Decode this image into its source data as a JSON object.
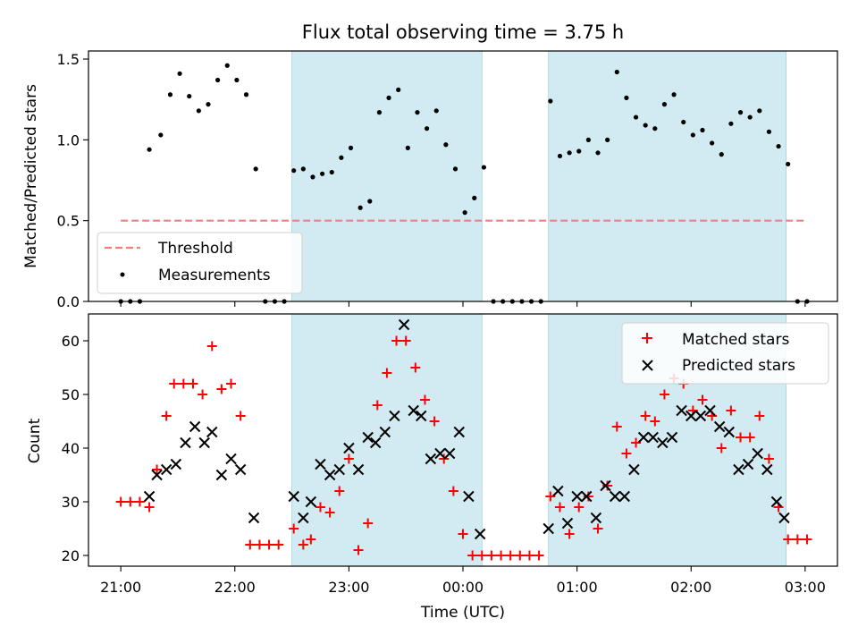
{
  "chart_data": [
    {
      "type": "scatter",
      "title": "Flux total observing time = 3.75 h",
      "xlabel": "",
      "ylabel": "Matched/Predicted stars",
      "xlim": [
        "20:43",
        "03:17"
      ],
      "ylim": [
        0,
        1.55
      ],
      "yticks": [
        "0.0",
        "0.5",
        "1.0",
        "1.5"
      ],
      "xtick_values": [
        "21:00",
        "22:00",
        "23:00",
        "00:00",
        "01:00",
        "02:00",
        "03:00"
      ],
      "shaded_regions": [
        [
          "22:30",
          "00:10"
        ],
        [
          "00:45",
          "02:50"
        ]
      ],
      "shade_color": "#add8e6",
      "legend": {
        "position": "lower-left",
        "entries": [
          "Threshold",
          "Measurements"
        ]
      },
      "threshold": {
        "name": "Threshold",
        "value": 0.5,
        "x_range": [
          "21:00",
          "03:00"
        ],
        "color": "#f08080",
        "style": "dashed"
      },
      "series": [
        {
          "name": "Measurements",
          "marker": "dot",
          "color": "#000000",
          "points": [
            [
              "21:00",
              0.0
            ],
            [
              "21:05",
              0.0
            ],
            [
              "21:10",
              0.0
            ],
            [
              "21:15",
              0.94
            ],
            [
              "21:21",
              1.03
            ],
            [
              "21:26",
              1.28
            ],
            [
              "21:31",
              1.41
            ],
            [
              "21:36",
              1.27
            ],
            [
              "21:41",
              1.18
            ],
            [
              "21:46",
              1.22
            ],
            [
              "21:51",
              1.37
            ],
            [
              "21:56",
              1.46
            ],
            [
              "22:01",
              1.37
            ],
            [
              "22:06",
              1.28
            ],
            [
              "22:11",
              0.82
            ],
            [
              "22:16",
              0.0
            ],
            [
              "22:21",
              0.0
            ],
            [
              "22:26",
              0.0
            ],
            [
              "22:31",
              0.81
            ],
            [
              "22:36",
              0.82
            ],
            [
              "22:41",
              0.77
            ],
            [
              "22:46",
              0.79
            ],
            [
              "22:51",
              0.8
            ],
            [
              "22:56",
              0.89
            ],
            [
              "23:01",
              0.95
            ],
            [
              "23:06",
              0.58
            ],
            [
              "23:11",
              0.62
            ],
            [
              "23:16",
              1.17
            ],
            [
              "23:21",
              1.26
            ],
            [
              "23:26",
              1.31
            ],
            [
              "23:31",
              0.95
            ],
            [
              "23:36",
              1.17
            ],
            [
              "23:41",
              1.07
            ],
            [
              "23:46",
              1.18
            ],
            [
              "23:51",
              0.97
            ],
            [
              "23:56",
              0.82
            ],
            [
              "00:01",
              0.55
            ],
            [
              "00:06",
              0.64
            ],
            [
              "00:11",
              0.83
            ],
            [
              "00:16",
              0.0
            ],
            [
              "00:21",
              0.0
            ],
            [
              "00:26",
              0.0
            ],
            [
              "00:31",
              0.0
            ],
            [
              "00:36",
              0.0
            ],
            [
              "00:41",
              0.0
            ],
            [
              "00:46",
              1.24
            ],
            [
              "00:51",
              0.9
            ],
            [
              "00:56",
              0.92
            ],
            [
              "01:01",
              0.93
            ],
            [
              "01:06",
              1.0
            ],
            [
              "01:11",
              0.92
            ],
            [
              "01:16",
              1.0
            ],
            [
              "01:21",
              1.42
            ],
            [
              "01:26",
              1.26
            ],
            [
              "01:31",
              1.14
            ],
            [
              "01:36",
              1.09
            ],
            [
              "01:41",
              1.07
            ],
            [
              "01:46",
              1.22
            ],
            [
              "01:51",
              1.28
            ],
            [
              "01:56",
              1.11
            ],
            [
              "02:01",
              1.03
            ],
            [
              "02:06",
              1.06
            ],
            [
              "02:11",
              0.98
            ],
            [
              "02:16",
              0.91
            ],
            [
              "02:21",
              1.1
            ],
            [
              "02:26",
              1.17
            ],
            [
              "02:31",
              1.14
            ],
            [
              "02:36",
              1.18
            ],
            [
              "02:41",
              1.05
            ],
            [
              "02:46",
              0.96
            ],
            [
              "02:51",
              0.85
            ],
            [
              "02:56",
              0.0
            ],
            [
              "03:01",
              0.0
            ]
          ]
        }
      ]
    },
    {
      "type": "scatter",
      "title": "",
      "xlabel": "Time (UTC)",
      "ylabel": "Count",
      "xlim": [
        "20:43",
        "03:17"
      ],
      "ylim": [
        18,
        65
      ],
      "yticks": [
        "20",
        "30",
        "40",
        "50",
        "60"
      ],
      "xticks": [
        "21:00",
        "22:00",
        "23:00",
        "00:00",
        "01:00",
        "02:00",
        "03:00"
      ],
      "shaded_regions": [
        [
          "22:30",
          "00:10"
        ],
        [
          "00:45",
          "02:50"
        ]
      ],
      "shade_color": "#add8e6",
      "legend": {
        "position": "top-right",
        "entries": [
          "Matched stars",
          "Predicted stars"
        ]
      },
      "series": [
        {
          "name": "Matched stars",
          "marker": "plus",
          "color": "#ff0000",
          "points": [
            [
              "21:00",
              30
            ],
            [
              "21:05",
              30
            ],
            [
              "21:10",
              30
            ],
            [
              "21:15",
              29
            ],
            [
              "21:19",
              36
            ],
            [
              "21:24",
              46
            ],
            [
              "21:28",
              52
            ],
            [
              "21:33",
              52
            ],
            [
              "21:38",
              52
            ],
            [
              "21:43",
              50
            ],
            [
              "21:48",
              59
            ],
            [
              "21:53",
              51
            ],
            [
              "21:58",
              52
            ],
            [
              "22:03",
              46
            ],
            [
              "22:08",
              22
            ],
            [
              "22:13",
              22
            ],
            [
              "22:18",
              22
            ],
            [
              "22:23",
              22
            ],
            [
              "22:31",
              25
            ],
            [
              "22:36",
              22
            ],
            [
              "22:40",
              23
            ],
            [
              "22:45",
              29
            ],
            [
              "22:50",
              28
            ],
            [
              "22:55",
              32
            ],
            [
              "23:00",
              38
            ],
            [
              "23:05",
              21
            ],
            [
              "23:10",
              26
            ],
            [
              "23:15",
              48
            ],
            [
              "23:20",
              54
            ],
            [
              "23:25",
              60
            ],
            [
              "23:30",
              60
            ],
            [
              "23:35",
              55
            ],
            [
              "23:40",
              49
            ],
            [
              "23:45",
              45
            ],
            [
              "23:50",
              38
            ],
            [
              "23:55",
              32
            ],
            [
              "00:00",
              24
            ],
            [
              "00:05",
              20
            ],
            [
              "00:10",
              20
            ],
            [
              "00:15",
              20
            ],
            [
              "00:20",
              20
            ],
            [
              "00:25",
              20
            ],
            [
              "00:30",
              20
            ],
            [
              "00:35",
              20
            ],
            [
              "00:40",
              20
            ],
            [
              "00:46",
              31
            ],
            [
              "00:51",
              29
            ],
            [
              "00:56",
              24
            ],
            [
              "01:01",
              29
            ],
            [
              "01:06",
              31
            ],
            [
              "01:11",
              25
            ],
            [
              "01:16",
              33
            ],
            [
              "01:21",
              44
            ],
            [
              "01:26",
              39
            ],
            [
              "01:31",
              41
            ],
            [
              "01:36",
              46
            ],
            [
              "01:41",
              45
            ],
            [
              "01:46",
              50
            ],
            [
              "01:51",
              53
            ],
            [
              "01:56",
              52
            ],
            [
              "02:01",
              47
            ],
            [
              "02:06",
              49
            ],
            [
              "02:11",
              46
            ],
            [
              "02:16",
              40
            ],
            [
              "02:21",
              47
            ],
            [
              "02:26",
              42
            ],
            [
              "02:31",
              42
            ],
            [
              "02:36",
              46
            ],
            [
              "02:41",
              38
            ],
            [
              "02:46",
              29
            ],
            [
              "02:51",
              23
            ],
            [
              "02:56",
              23
            ],
            [
              "03:01",
              23
            ]
          ]
        },
        {
          "name": "Predicted stars",
          "marker": "x",
          "color": "#000000",
          "points": [
            [
              "21:15",
              31
            ],
            [
              "21:19",
              35
            ],
            [
              "21:24",
              36
            ],
            [
              "21:29",
              37
            ],
            [
              "21:34",
              41
            ],
            [
              "21:39",
              44
            ],
            [
              "21:44",
              41
            ],
            [
              "21:48",
              43
            ],
            [
              "21:53",
              35
            ],
            [
              "21:58",
              38
            ],
            [
              "22:03",
              36
            ],
            [
              "22:10",
              27
            ],
            [
              "22:31",
              31
            ],
            [
              "22:36",
              27
            ],
            [
              "22:40",
              30
            ],
            [
              "22:45",
              37
            ],
            [
              "22:50",
              35
            ],
            [
              "22:55",
              36
            ],
            [
              "23:00",
              40
            ],
            [
              "23:05",
              36
            ],
            [
              "23:10",
              42
            ],
            [
              "23:14",
              41
            ],
            [
              "23:19",
              43
            ],
            [
              "23:24",
              46
            ],
            [
              "23:29",
              63
            ],
            [
              "23:34",
              47
            ],
            [
              "23:38",
              46
            ],
            [
              "23:43",
              38
            ],
            [
              "23:48",
              39
            ],
            [
              "23:53",
              39
            ],
            [
              "23:58",
              43
            ],
            [
              "00:03",
              31
            ],
            [
              "00:09",
              24
            ],
            [
              "00:45",
              25
            ],
            [
              "00:50",
              32
            ],
            [
              "00:55",
              26
            ],
            [
              "01:00",
              31
            ],
            [
              "01:05",
              31
            ],
            [
              "01:10",
              27
            ],
            [
              "01:15",
              33
            ],
            [
              "01:20",
              31
            ],
            [
              "01:25",
              31
            ],
            [
              "01:30",
              36
            ],
            [
              "01:35",
              42
            ],
            [
              "01:40",
              42
            ],
            [
              "01:45",
              41
            ],
            [
              "01:50",
              42
            ],
            [
              "01:55",
              47
            ],
            [
              "02:00",
              46
            ],
            [
              "02:05",
              46
            ],
            [
              "02:10",
              47
            ],
            [
              "02:15",
              44
            ],
            [
              "02:20",
              43
            ],
            [
              "02:25",
              36
            ],
            [
              "02:30",
              37
            ],
            [
              "02:35",
              39
            ],
            [
              "02:40",
              36
            ],
            [
              "02:45",
              30
            ],
            [
              "02:49",
              27
            ]
          ]
        }
      ]
    }
  ]
}
